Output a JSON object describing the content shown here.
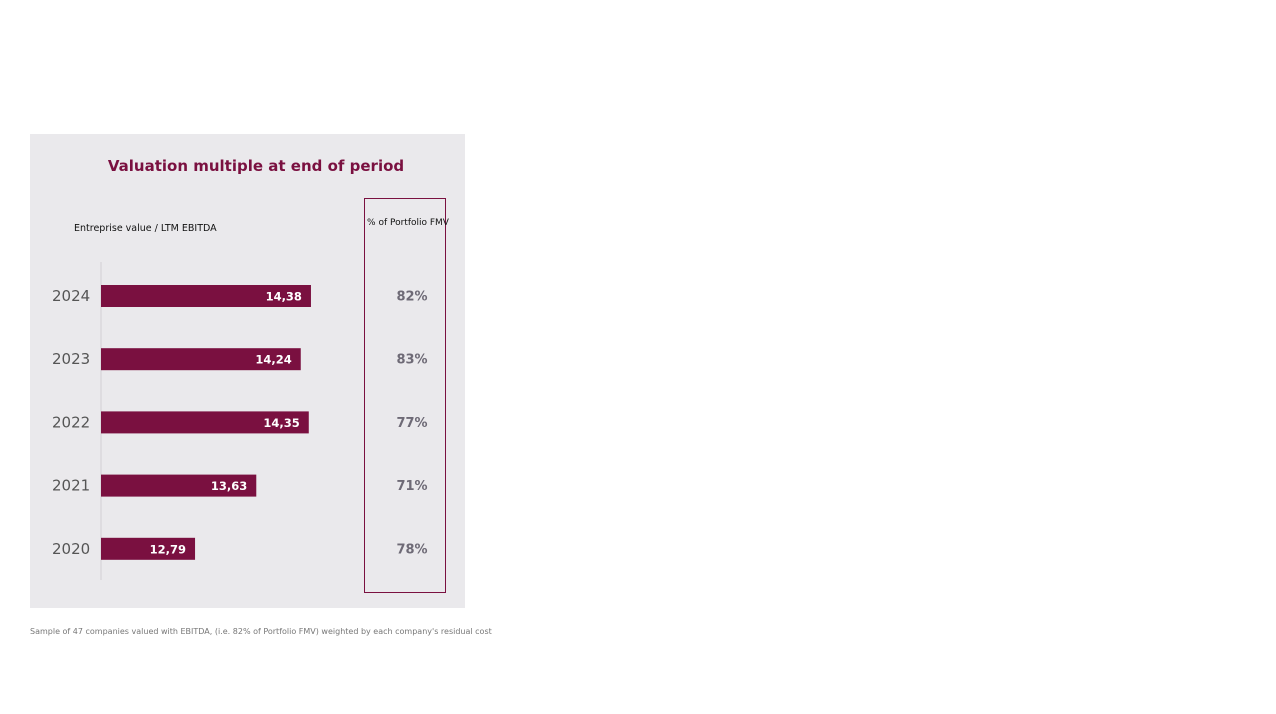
{
  "chart_data": {
    "type": "bar",
    "orientation": "horizontal",
    "title": "Valuation multiple at end of period",
    "ylabel": "Entreprise value / LTM EBITDA",
    "categories": [
      "2024",
      "2023",
      "2022",
      "2021",
      "2020"
    ],
    "values": [
      14.38,
      14.24,
      14.35,
      13.63,
      12.79
    ],
    "value_labels": [
      "14,38",
      "14,24",
      "14,35",
      "13,63",
      "12,79"
    ],
    "xlim": [
      11.5,
      14.6
    ],
    "bar_color": "#7a1040",
    "side_column": {
      "header": "% of Portfolio FMV",
      "values": [
        "82%",
        "83%",
        "77%",
        "71%",
        "78%"
      ]
    }
  },
  "footnote": "Sample of 47 companies valued with EBITDA, (i.e. 82% of Portfolio FMV) weighted by each company's residual cost"
}
